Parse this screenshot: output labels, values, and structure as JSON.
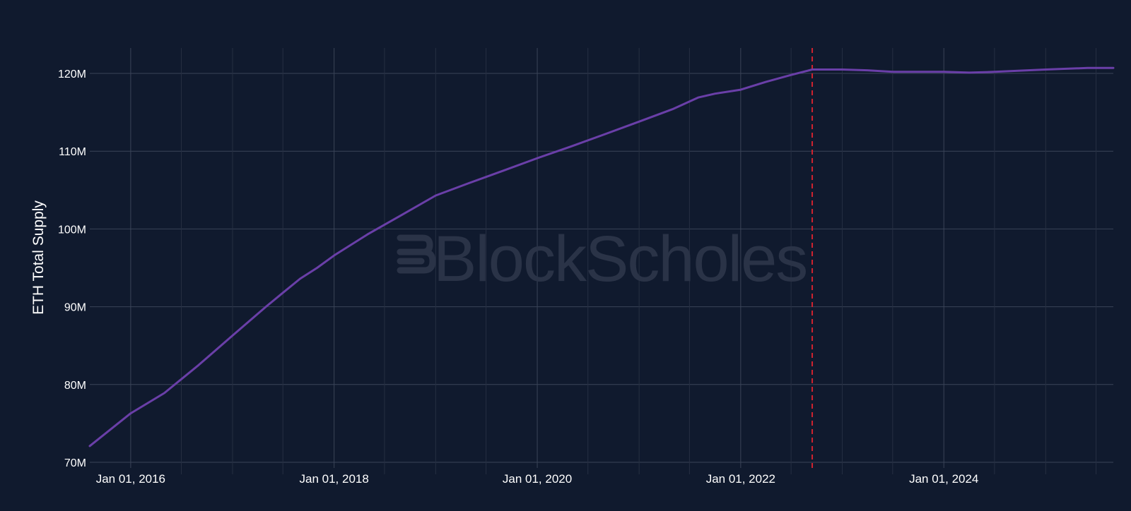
{
  "chart_data": {
    "type": "line",
    "title": "",
    "xlabel": "",
    "ylabel": "ETH Total Supply",
    "x_range": [
      "2015-08-07",
      "2025-09-01"
    ],
    "ylim": [
      70,
      124
    ],
    "y_unit": "M",
    "y_ticks": [
      {
        "value": 70,
        "label": "70M"
      },
      {
        "value": 80,
        "label": "80M"
      },
      {
        "value": 90,
        "label": "90M"
      },
      {
        "value": 100,
        "label": "100M"
      },
      {
        "value": 110,
        "label": "110M"
      },
      {
        "value": 120,
        "label": "120M"
      }
    ],
    "x_ticks": [
      {
        "value": "2016-01-01",
        "label": "Jan 01, 2016"
      },
      {
        "value": "2018-01-01",
        "label": "Jan 01, 2018"
      },
      {
        "value": "2020-01-01",
        "label": "Jan 01, 2020"
      },
      {
        "value": "2022-01-01",
        "label": "Jan 01, 2022"
      },
      {
        "value": "2024-01-01",
        "label": "Jan 01, 2024"
      }
    ],
    "x_minor_ticks": [
      "2016-07-01",
      "2017-01-01",
      "2017-07-01",
      "2018-07-01",
      "2019-01-01",
      "2019-07-01",
      "2020-07-01",
      "2021-01-01",
      "2021-07-01",
      "2022-07-01",
      "2023-01-01",
      "2023-07-01",
      "2024-07-01",
      "2025-01-01",
      "2025-07-01"
    ],
    "grid": true,
    "series": [
      {
        "color": "#6a3fa8",
        "points": [
          {
            "x": "2015-08-07",
            "y": 72.1
          },
          {
            "x": "2016-01-01",
            "y": 76.3
          },
          {
            "x": "2016-05-01",
            "y": 78.9
          },
          {
            "x": "2016-09-01",
            "y": 82.5
          },
          {
            "x": "2017-01-01",
            "y": 86.3
          },
          {
            "x": "2017-05-01",
            "y": 90.0
          },
          {
            "x": "2017-07-01",
            "y": 91.8
          },
          {
            "x": "2017-09-01",
            "y": 93.6
          },
          {
            "x": "2017-11-01",
            "y": 95.0
          },
          {
            "x": "2018-01-01",
            "y": 96.6
          },
          {
            "x": "2018-05-01",
            "y": 99.3
          },
          {
            "x": "2018-09-01",
            "y": 101.8
          },
          {
            "x": "2019-01-01",
            "y": 104.3
          },
          {
            "x": "2019-05-01",
            "y": 105.9
          },
          {
            "x": "2019-09-01",
            "y": 107.5
          },
          {
            "x": "2020-01-01",
            "y": 109.1
          },
          {
            "x": "2020-05-01",
            "y": 110.6
          },
          {
            "x": "2020-09-01",
            "y": 112.2
          },
          {
            "x": "2021-01-01",
            "y": 113.8
          },
          {
            "x": "2021-05-01",
            "y": 115.4
          },
          {
            "x": "2021-08-01",
            "y": 116.9
          },
          {
            "x": "2021-10-01",
            "y": 117.4
          },
          {
            "x": "2022-01-01",
            "y": 117.9
          },
          {
            "x": "2022-04-01",
            "y": 118.9
          },
          {
            "x": "2022-07-01",
            "y": 119.8
          },
          {
            "x": "2022-09-15",
            "y": 120.5
          },
          {
            "x": "2023-01-01",
            "y": 120.5
          },
          {
            "x": "2023-04-01",
            "y": 120.4
          },
          {
            "x": "2023-07-01",
            "y": 120.2
          },
          {
            "x": "2024-01-01",
            "y": 120.2
          },
          {
            "x": "2024-04-01",
            "y": 120.1
          },
          {
            "x": "2024-07-01",
            "y": 120.2
          },
          {
            "x": "2025-01-01",
            "y": 120.5
          },
          {
            "x": "2025-06-01",
            "y": 120.7
          },
          {
            "x": "2025-09-01",
            "y": 120.7
          }
        ]
      }
    ],
    "annotations": [
      {
        "type": "vertical-line",
        "x": "2022-09-15",
        "color": "#d0232f",
        "style": "dashed"
      }
    ]
  },
  "watermark": {
    "text": "BlockScholes"
  }
}
